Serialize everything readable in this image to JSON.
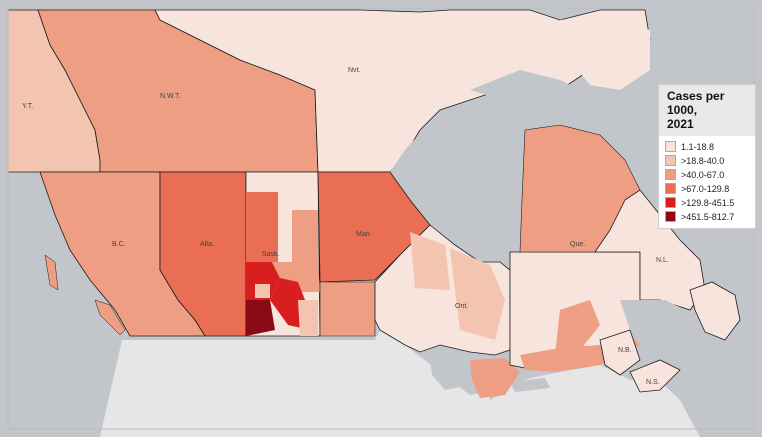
{
  "legend": {
    "title_line1": "Cases per 1000,",
    "title_line2": "2021",
    "items": [
      {
        "label": "1.1-18.8",
        "color": "#f7e4dc"
      },
      {
        "label": ">18.8-40.0",
        "color": "#f3c4b0"
      },
      {
        "label": ">40.0-67.0",
        "color": "#ee9e83"
      },
      {
        "label": ">67.0-129.8",
        "color": "#ea6e54"
      },
      {
        "label": ">129.8-451.5",
        "color": "#d81e1e"
      },
      {
        "label": ">451.5-812.7",
        "color": "#8a0a16"
      }
    ]
  },
  "provinces": {
    "yt": "Y.T.",
    "nwt": "N.W.T.",
    "nvt": "Nvt.",
    "bc": "B.C.",
    "alta": "Alta.",
    "sask": "Sask.",
    "man": "Man.",
    "ont": "Ont.",
    "que": "Que.",
    "nl": "N.L.",
    "nb": "N.B.",
    "ns": "N.S."
  },
  "colors": {
    "water": "#c2c6cb",
    "us_land": "#e6e6e6",
    "border": "#1c1c1c"
  }
}
